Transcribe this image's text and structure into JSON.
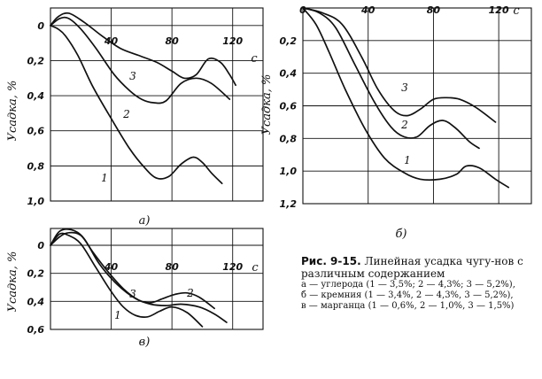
{
  "chart_data": [
    {
      "type": "line",
      "panel_label": "а)",
      "xlabel": "с",
      "ylabel": "Усадка, %",
      "xlim": [
        0,
        140
      ],
      "ylim": [
        1.0,
        -0.1
      ],
      "x_ticks": [
        40,
        80,
        120
      ],
      "y_ticks": [
        0,
        0.2,
        0.4,
        0.6,
        0.8,
        1.0
      ],
      "y_tick_labels": [
        "0",
        "0,2",
        "0,4",
        "0,6",
        "0,8",
        "1,0"
      ],
      "grid": true,
      "series": [
        {
          "name": "1",
          "points": [
            [
              0,
              0
            ],
            [
              5,
              0.02
            ],
            [
              10,
              0.06
            ],
            [
              18,
              0.17
            ],
            [
              28,
              0.35
            ],
            [
              40,
              0.53
            ],
            [
              52,
              0.7
            ],
            [
              62,
              0.81
            ],
            [
              70,
              0.87
            ],
            [
              78,
              0.86
            ],
            [
              86,
              0.79
            ],
            [
              94,
              0.75
            ],
            [
              100,
              0.78
            ],
            [
              106,
              0.84
            ],
            [
              113,
              0.9
            ]
          ]
        },
        {
          "name": "2",
          "points": [
            [
              0,
              0
            ],
            [
              6,
              -0.04
            ],
            [
              12,
              -0.04
            ],
            [
              20,
              0.02
            ],
            [
              30,
              0.13
            ],
            [
              42,
              0.28
            ],
            [
              52,
              0.37
            ],
            [
              60,
              0.42
            ],
            [
              68,
              0.44
            ],
            [
              76,
              0.43
            ],
            [
              86,
              0.33
            ],
            [
              96,
              0.3
            ],
            [
              106,
              0.33
            ],
            [
              118,
              0.42
            ]
          ]
        },
        {
          "name": "3",
          "points": [
            [
              0,
              0
            ],
            [
              5,
              -0.05
            ],
            [
              12,
              -0.07
            ],
            [
              22,
              -0.02
            ],
            [
              34,
              0.06
            ],
            [
              46,
              0.13
            ],
            [
              58,
              0.17
            ],
            [
              70,
              0.21
            ],
            [
              80,
              0.26
            ],
            [
              88,
              0.3
            ],
            [
              96,
              0.28
            ],
            [
              104,
              0.19
            ],
            [
              112,
              0.21
            ],
            [
              118,
              0.28
            ],
            [
              122,
              0.34
            ]
          ]
        }
      ],
      "curve_label_names": [
        "1",
        "2",
        "3"
      ]
    },
    {
      "type": "line",
      "panel_label": "б)",
      "xlabel": "с",
      "ylabel": "Усадка, %",
      "xlim": [
        0,
        140
      ],
      "ylim": [
        1.2,
        0.0
      ],
      "x_ticks": [
        0,
        40,
        80,
        120
      ],
      "y_ticks": [
        0.2,
        0.4,
        0.6,
        0.8,
        1.0,
        1.2
      ],
      "y_tick_labels": [
        "0,2",
        "0,4",
        "0,6",
        "0,8",
        "1,0",
        "1,2"
      ],
      "grid": true,
      "series": [
        {
          "name": "1",
          "points": [
            [
              0,
              0
            ],
            [
              8,
              0.1
            ],
            [
              16,
              0.27
            ],
            [
              26,
              0.5
            ],
            [
              38,
              0.74
            ],
            [
              50,
              0.92
            ],
            [
              62,
              1.01
            ],
            [
              72,
              1.05
            ],
            [
              84,
              1.05
            ],
            [
              94,
              1.02
            ],
            [
              100,
              0.97
            ],
            [
              108,
              0.98
            ],
            [
              118,
              1.05
            ],
            [
              126,
              1.1
            ]
          ]
        },
        {
          "name": "2",
          "points": [
            [
              0,
              0
            ],
            [
              10,
              0.03
            ],
            [
              20,
              0.12
            ],
            [
              32,
              0.35
            ],
            [
              44,
              0.58
            ],
            [
              54,
              0.73
            ],
            [
              62,
              0.79
            ],
            [
              70,
              0.79
            ],
            [
              78,
              0.72
            ],
            [
              86,
              0.69
            ],
            [
              94,
              0.74
            ],
            [
              102,
              0.82
            ],
            [
              108,
              0.86
            ]
          ]
        },
        {
          "name": "3",
          "points": [
            [
              0,
              0
            ],
            [
              12,
              0.03
            ],
            [
              24,
              0.1
            ],
            [
              36,
              0.3
            ],
            [
              46,
              0.5
            ],
            [
              56,
              0.63
            ],
            [
              64,
              0.66
            ],
            [
              72,
              0.62
            ],
            [
              80,
              0.56
            ],
            [
              88,
              0.55
            ],
            [
              96,
              0.56
            ],
            [
              106,
              0.61
            ],
            [
              118,
              0.7
            ]
          ]
        }
      ],
      "curve_label_names": [
        "1",
        "2",
        "3"
      ]
    },
    {
      "type": "line",
      "panel_label": "в)",
      "xlabel": "с",
      "ylabel": "Усадка, %",
      "xlim": [
        0,
        140
      ],
      "ylim": [
        0.6,
        -0.12
      ],
      "x_ticks": [
        40,
        80,
        120
      ],
      "y_ticks": [
        0,
        0.2,
        0.4,
        0.6
      ],
      "y_tick_labels": [
        "0",
        "0,2",
        "0,4",
        "0,6"
      ],
      "grid": true,
      "series": [
        {
          "name": "1",
          "points": [
            [
              0,
              0
            ],
            [
              6,
              -0.08
            ],
            [
              12,
              -0.07
            ],
            [
              20,
              -0.01
            ],
            [
              30,
              0.16
            ],
            [
              40,
              0.33
            ],
            [
              48,
              0.44
            ],
            [
              56,
              0.5
            ],
            [
              64,
              0.51
            ],
            [
              72,
              0.47
            ],
            [
              80,
              0.44
            ],
            [
              90,
              0.48
            ],
            [
              100,
              0.58
            ]
          ]
        },
        {
          "name": "2",
          "points": [
            [
              0,
              0
            ],
            [
              6,
              -0.06
            ],
            [
              12,
              -0.09
            ],
            [
              20,
              -0.07
            ],
            [
              28,
              0.05
            ],
            [
              38,
              0.19
            ],
            [
              48,
              0.31
            ],
            [
              58,
              0.39
            ],
            [
              66,
              0.41
            ],
            [
              74,
              0.38
            ],
            [
              82,
              0.35
            ],
            [
              90,
              0.34
            ],
            [
              98,
              0.37
            ],
            [
              108,
              0.45
            ]
          ]
        },
        {
          "name": "3",
          "points": [
            [
              0,
              0
            ],
            [
              6,
              -0.1
            ],
            [
              14,
              -0.11
            ],
            [
              22,
              -0.05
            ],
            [
              32,
              0.13
            ],
            [
              44,
              0.28
            ],
            [
              56,
              0.38
            ],
            [
              66,
              0.42
            ],
            [
              76,
              0.43
            ],
            [
              86,
              0.42
            ],
            [
              98,
              0.44
            ],
            [
              108,
              0.49
            ],
            [
              116,
              0.55
            ]
          ]
        }
      ],
      "curve_label_names": [
        "1",
        "2",
        "3"
      ]
    }
  ],
  "caption": {
    "title_bold": "Рис. 9-15.",
    "title_rest": "Линейная усадка чугу-нов с различным содержанием",
    "items": [
      "а — углерода (1 — 3,5%; 2 — 4,3%; 3 — 5,2%),",
      "б — кремния (1 — 3,4%, 2 — 4,3%, 3 — 5,2%),",
      "в — марганца (1 — 0,6%, 2 — 1,0%, 3 — 1,5%)"
    ]
  }
}
